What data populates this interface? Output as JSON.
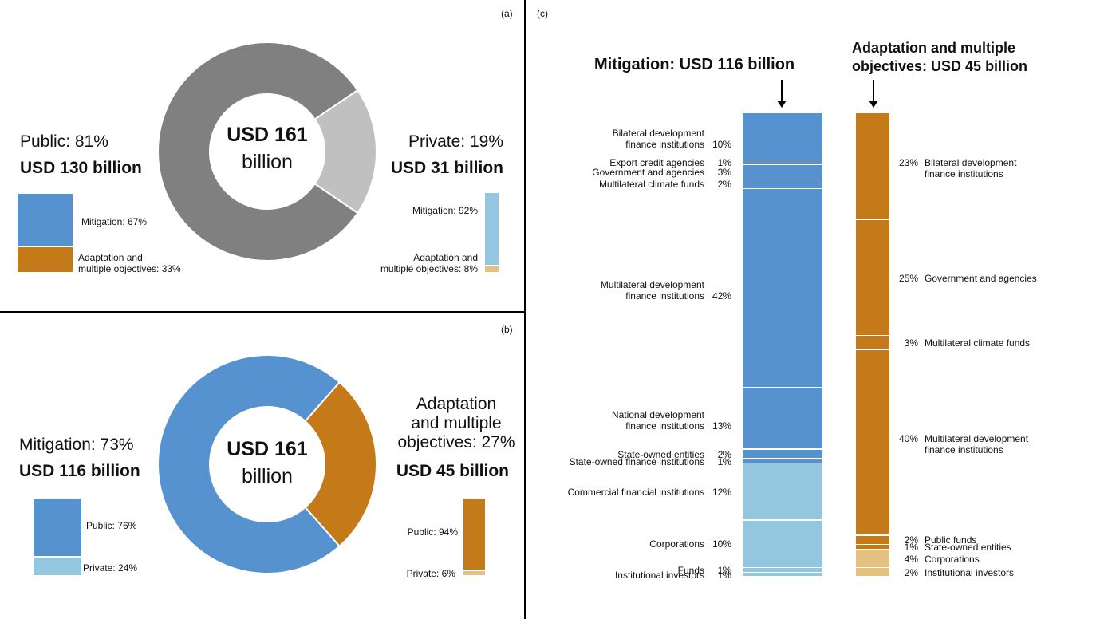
{
  "colors": {
    "public_gray": "#808080",
    "private_gray": "#c0c0c0",
    "mitigation_blue": "#5592cf",
    "adaptation_orange": "#c47a18",
    "private_lightblue": "#93c6df",
    "private_lightorange": "#e2c27e"
  },
  "panel_a": {
    "tag": "(a)",
    "center": {
      "line1": "USD 161",
      "line2": "billion"
    },
    "public": {
      "share_label": "Public: 81%",
      "amount_label": "USD 130 billion",
      "share": 81
    },
    "private": {
      "share_label": "Private: 19%",
      "amount_label": "USD 31 billion",
      "share": 19
    },
    "public_split": {
      "mitigation_label": "Mitigation: 67%",
      "adaptation_label_1": "Adaptation and",
      "adaptation_label_2": "multiple objectives: 33%",
      "mitigation": 67,
      "adaptation": 33
    },
    "private_split": {
      "mitigation_label": "Mitigation: 92%",
      "adaptation_label_1": "Adaptation and",
      "adaptation_label_2": "multiple objectives: 8%",
      "mitigation": 92,
      "adaptation": 8
    }
  },
  "panel_b": {
    "tag": "(b)",
    "center": {
      "line1": "USD 161",
      "line2": "billion"
    },
    "mitigation": {
      "share_label": "Mitigation: 73%",
      "amount_label": "USD 116 billion",
      "share": 73
    },
    "adaptation": {
      "label_1": "Adaptation",
      "label_2": "and multiple",
      "label_3": "objectives: 27%",
      "amount_label": "USD 45 billion",
      "share": 27
    },
    "mitigation_split": {
      "public_label": "Public: 76%",
      "private_label": "Private: 24%",
      "public": 76,
      "private": 24
    },
    "adaptation_split": {
      "public_label": "Public: 94%",
      "private_label": "Private: 6%",
      "public": 94,
      "private": 6
    }
  },
  "panel_c": {
    "tag": "(c)",
    "mitigation_title": "Mitigation: USD 116 billion",
    "adaptation_title_1": "Adaptation and multiple",
    "adaptation_title_2": "objectives: USD 45 billion"
  },
  "chart_data": [
    {
      "type": "pie",
      "panel": "(a)",
      "center_label": "USD 161 billion",
      "categories": [
        "Public",
        "Private"
      ],
      "values": [
        81,
        19
      ],
      "amounts_usd_billion": [
        130,
        31
      ],
      "sub_breakdown": {
        "Public": {
          "Mitigation": 67,
          "Adaptation and multiple objectives": 33
        },
        "Private": {
          "Mitigation": 92,
          "Adaptation and multiple objectives": 8
        }
      }
    },
    {
      "type": "pie",
      "panel": "(b)",
      "center_label": "USD 161 billion",
      "categories": [
        "Mitigation",
        "Adaptation and multiple objectives"
      ],
      "values": [
        73,
        27
      ],
      "amounts_usd_billion": [
        116,
        45
      ],
      "sub_breakdown": {
        "Mitigation": {
          "Public": 76,
          "Private": 24
        },
        "Adaptation and multiple objectives": {
          "Public": 94,
          "Private": 6
        }
      }
    },
    {
      "type": "bar",
      "panel": "(c)",
      "title": "Mitigation: USD 116 billion",
      "segments": [
        {
          "label_1": "Bilateral  development",
          "label_2": "finance institutions",
          "value": 10,
          "value_label": "10%",
          "sector": "public"
        },
        {
          "label_1": "Export credit agencies",
          "value": 1,
          "value_label": "1%",
          "sector": "public"
        },
        {
          "label_1": "Government and agencies",
          "value": 3,
          "value_label": "3%",
          "sector": "public"
        },
        {
          "label_1": "Multilateral climate funds",
          "value": 2,
          "value_label": "2%",
          "sector": "public"
        },
        {
          "label_1": "Multilateral development",
          "label_2": "finance institutions",
          "value": 42,
          "value_label": "42%",
          "sector": "public"
        },
        {
          "label_1": "National development",
          "label_2": "finance institutions",
          "value": 13,
          "value_label": "13%",
          "sector": "public"
        },
        {
          "label_1": "State-owned entities",
          "value": 2,
          "value_label": "2%",
          "sector": "public"
        },
        {
          "label_1": "State-owned finance institutions",
          "value": 1,
          "value_label": "1%",
          "sector": "public"
        },
        {
          "label_1": "Commercial financial institutions",
          "value": 12,
          "value_label": "12%",
          "sector": "private"
        },
        {
          "label_1": "Corporations",
          "value": 10,
          "value_label": "10%",
          "sector": "private"
        },
        {
          "label_1": "Funds",
          "value": 1,
          "value_label": "1%",
          "sector": "private"
        },
        {
          "label_1": "Institutional investors",
          "value": 1,
          "value_label": "1%",
          "sector": "private"
        }
      ]
    },
    {
      "type": "bar",
      "panel": "(c)",
      "title": "Adaptation and multiple objectives: USD 45 billion",
      "segments": [
        {
          "label_1": "Bilateral development",
          "label_2": "finance institutions",
          "value": 23,
          "value_label": "23%",
          "sector": "public"
        },
        {
          "label_1": "Government and agencies",
          "value": 25,
          "value_label": "25%",
          "sector": "public"
        },
        {
          "label_1": "Multilateral climate funds",
          "value": 3,
          "value_label": "3%",
          "sector": "public"
        },
        {
          "label_1": "Multilateral development",
          "label_2": "finance institutions",
          "value": 40,
          "value_label": "40%",
          "sector": "public"
        },
        {
          "label_1": "Public funds",
          "value": 2,
          "value_label": "2%",
          "sector": "public"
        },
        {
          "label_1": "State-owned entities",
          "value": 1,
          "value_label": "1%",
          "sector": "public"
        },
        {
          "label_1": "Corporations",
          "value": 4,
          "value_label": "4%",
          "sector": "private"
        },
        {
          "label_1": "Institutional investors",
          "value": 2,
          "value_label": "2%",
          "sector": "private"
        }
      ]
    }
  ]
}
